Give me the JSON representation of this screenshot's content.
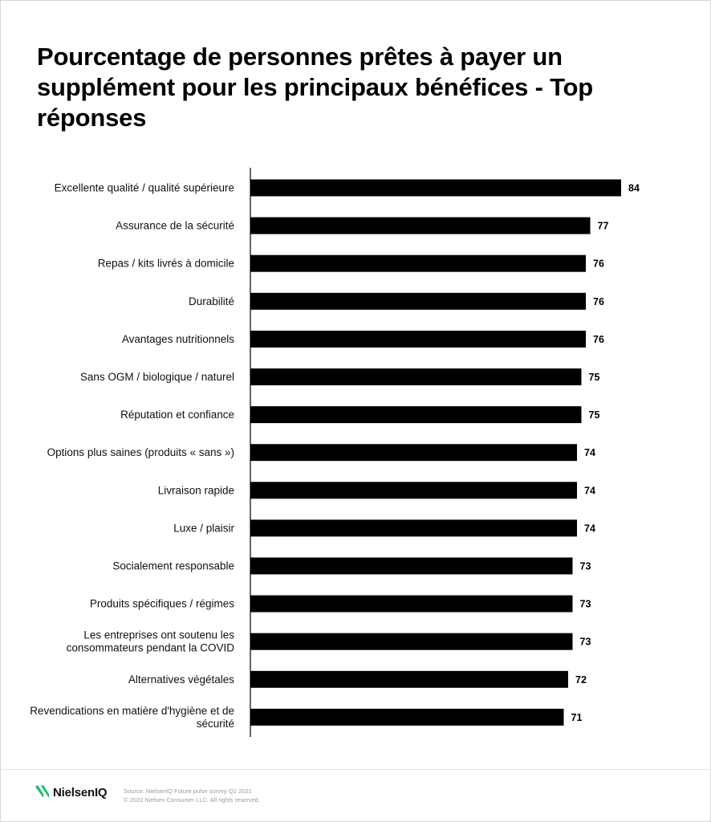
{
  "title": "Pourcentage de personnes prêtes à payer un supplément pour les principaux bénéfices - Top réponses",
  "chart_data": {
    "type": "bar",
    "orientation": "horizontal",
    "title": "Pourcentage de personnes prêtes à payer un supplément pour les principaux bénéfices - Top réponses",
    "xlabel": "",
    "ylabel": "",
    "grid": false,
    "bar_color": "#000000",
    "categories": [
      [
        "Excellente qualité / qualité supérieure"
      ],
      [
        "Assurance de la sécurité"
      ],
      [
        "Repas / kits livrés à domicile"
      ],
      [
        "Durabilité"
      ],
      [
        "Avantages nutritionnels"
      ],
      [
        "Sans OGM / biologique / naturel"
      ],
      [
        "Réputation et confiance"
      ],
      [
        "Options plus saines (produits « sans »)"
      ],
      [
        "Livraison rapide"
      ],
      [
        "Luxe / plaisir"
      ],
      [
        "Socialement responsable"
      ],
      [
        "Produits spécifiques / régimes"
      ],
      [
        "Les entreprises ont soutenu les",
        "consommateurs pendant la COVID"
      ],
      [
        "Alternatives végétales"
      ],
      [
        "Revendications en matière d'hygiène et de",
        "sécurité"
      ]
    ],
    "values": [
      84,
      77,
      76,
      76,
      76,
      75,
      75,
      74,
      74,
      74,
      73,
      73,
      73,
      72,
      71
    ],
    "xlim": [
      0,
      84
    ]
  },
  "footer": {
    "brand": "NielsenIQ",
    "brand_color": "#1dbe6a",
    "logo_icon": "nielseniq-logo-icon",
    "source": "Source: NielsenIQ Future pulse survey Q2 2021",
    "copyright": "© 2022 Nielsen Consumer LLC. All rights reserved."
  }
}
